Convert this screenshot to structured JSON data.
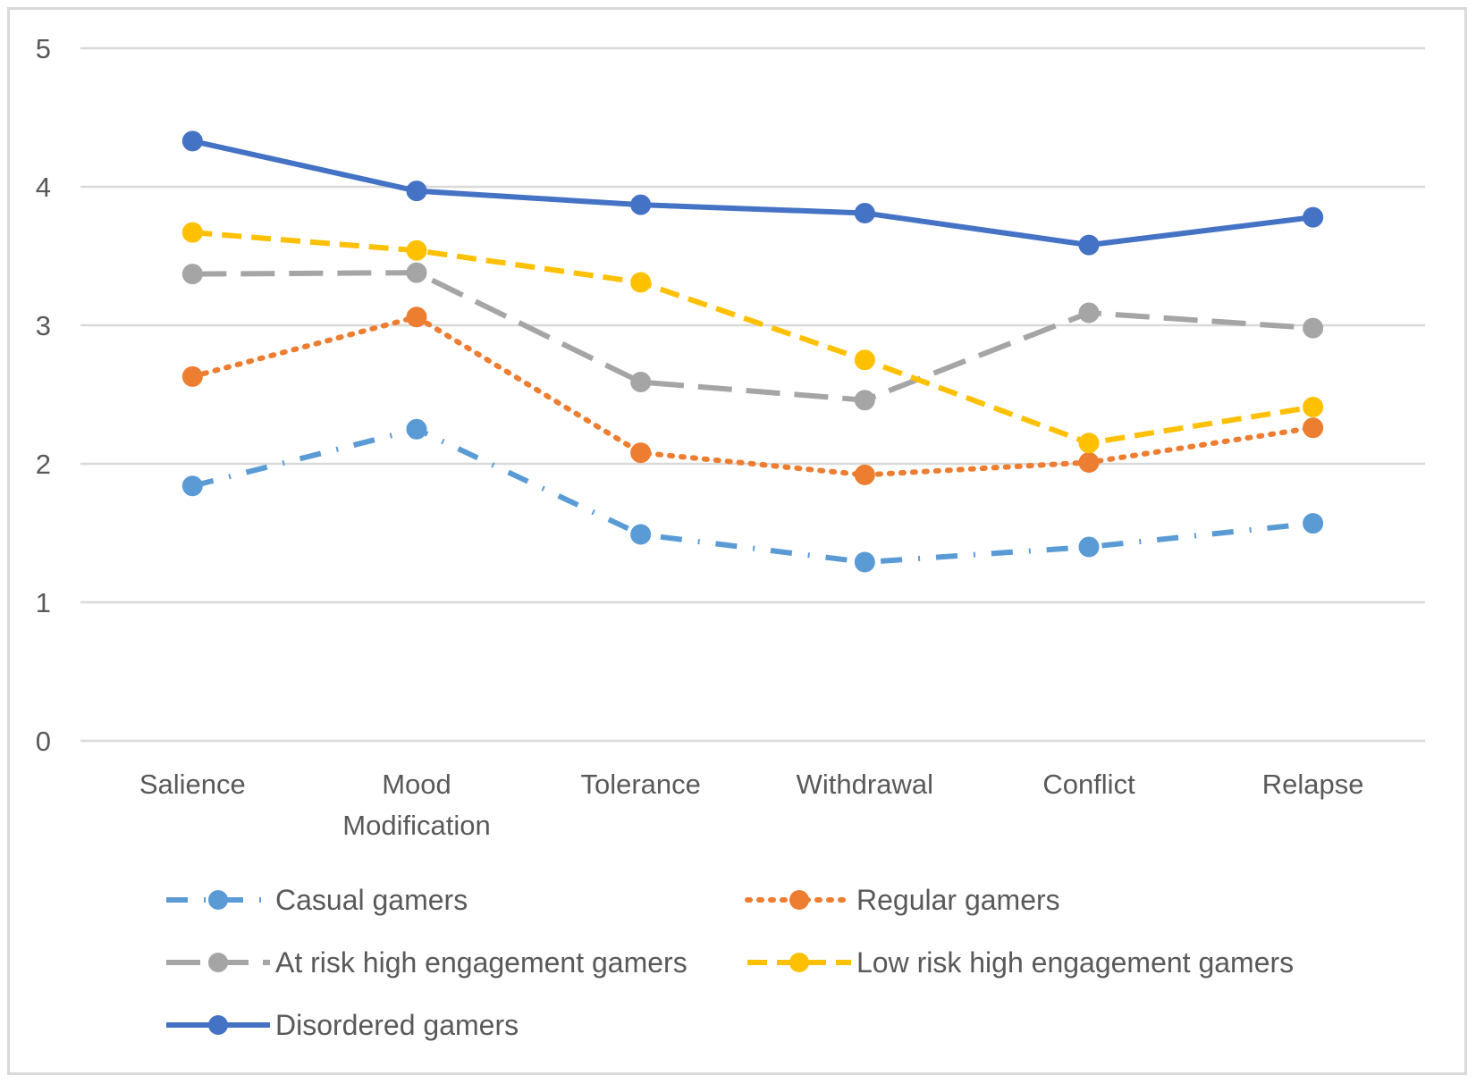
{
  "chart_data": {
    "type": "line",
    "title": "",
    "xlabel": "",
    "ylabel": "",
    "categories": [
      [
        "Salience"
      ],
      [
        "Mood",
        "Modification"
      ],
      [
        "Tolerance"
      ],
      [
        "Withdrawal"
      ],
      [
        "Conflict"
      ],
      [
        "Relapse"
      ]
    ],
    "ylim": [
      0,
      5
    ],
    "yticks": [
      "0",
      "1",
      "2",
      "3",
      "4",
      "5"
    ],
    "grid": true,
    "legend_position": "bottom",
    "series": [
      {
        "name": "Casual gamers",
        "color": "#5b9bd5",
        "dash": "dash-dot",
        "values": [
          1.84,
          2.25,
          1.49,
          1.29,
          1.4,
          1.57
        ]
      },
      {
        "name": "Regular gamers",
        "color": "#ed7d31",
        "dash": "dot",
        "values": [
          2.63,
          3.06,
          2.08,
          1.92,
          2.01,
          2.26
        ]
      },
      {
        "name": "At risk high engagement gamers",
        "color": "#a5a5a5",
        "dash": "long-dash",
        "values": [
          3.37,
          3.38,
          2.59,
          2.46,
          3.09,
          2.98
        ]
      },
      {
        "name": "Low risk high engagement gamers",
        "color": "#ffc000",
        "dash": "dash",
        "values": [
          3.67,
          3.54,
          3.31,
          2.75,
          2.15,
          2.41
        ]
      },
      {
        "name": "Disordered gamers",
        "color": "#4472c4",
        "dash": "solid",
        "values": [
          4.33,
          3.97,
          3.87,
          3.81,
          3.58,
          3.78
        ]
      }
    ]
  }
}
